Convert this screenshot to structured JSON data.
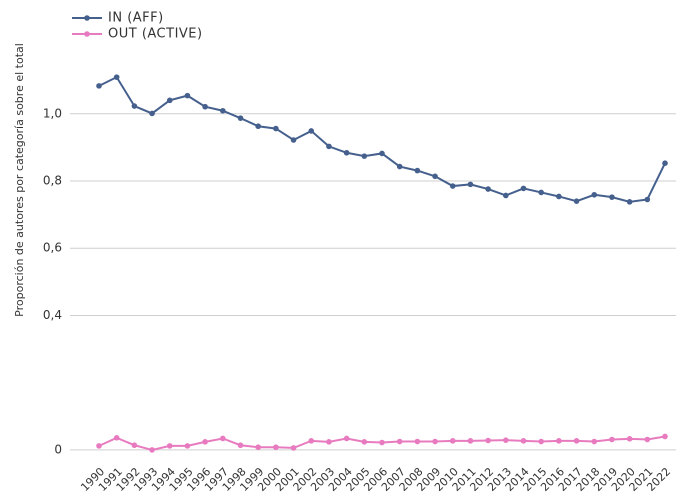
{
  "chart_data": {
    "type": "line",
    "y_label": "Proporción de autores por categoría sobre el total",
    "categories": [
      "1990",
      "1991",
      "1992",
      "1993",
      "1994",
      "1995",
      "1996",
      "1997",
      "1998",
      "1999",
      "2000",
      "2001",
      "2002",
      "2003",
      "2004",
      "2005",
      "2006",
      "2007",
      "2008",
      "2009",
      "2010",
      "2011",
      "2012",
      "2013",
      "2014",
      "2015",
      "2016",
      "2017",
      "2018",
      "2019",
      "2020",
      "2021",
      "2022"
    ],
    "series": [
      {
        "name": "IN (AFF)",
        "color": "#46608e",
        "values": [
          1.083,
          1.109,
          1.023,
          1.001,
          1.04,
          1.054,
          1.021,
          1.009,
          0.987,
          0.963,
          0.956,
          0.922,
          0.949,
          0.903,
          0.884,
          0.874,
          0.882,
          0.843,
          0.831,
          0.814,
          0.785,
          0.79,
          0.776,
          0.757,
          0.778,
          0.766,
          0.754,
          0.74,
          0.759,
          0.752,
          0.738,
          0.745,
          0.853
        ]
      },
      {
        "name": "OUT (ACTIVE)",
        "color": "#e87bbf",
        "values": [
          0.012,
          0.036,
          0.014,
          0.0,
          0.012,
          0.012,
          0.024,
          0.034,
          0.014,
          0.008,
          0.008,
          0.006,
          0.027,
          0.024,
          0.034,
          0.024,
          0.022,
          0.025,
          0.025,
          0.025,
          0.027,
          0.027,
          0.028,
          0.029,
          0.027,
          0.025,
          0.027,
          0.027,
          0.025,
          0.031,
          0.033,
          0.031,
          0.04
        ]
      }
    ],
    "ylim": [
      -0.03,
      1.16
    ],
    "yticks": [
      0,
      {
        "value": 0.4,
        "label": "0,4"
      },
      {
        "value": 0.6,
        "label": "0,6"
      },
      {
        "value": 0.8,
        "label": "0,8"
      },
      {
        "value": 1.0,
        "label": "1,0"
      }
    ],
    "grid": true,
    "legend": "top-left"
  }
}
